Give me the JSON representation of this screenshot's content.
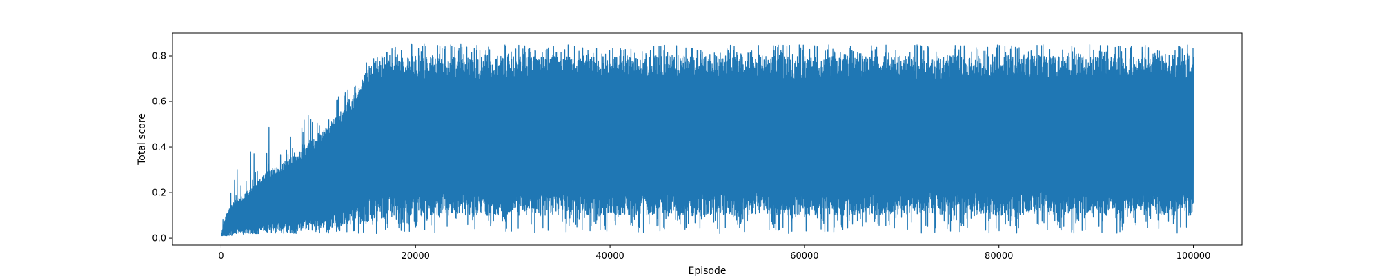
{
  "chart_data": {
    "type": "line",
    "title": "",
    "xlabel": "Episode",
    "ylabel": "Total score",
    "xlim": [
      -5000,
      105000
    ],
    "ylim": [
      -0.03,
      0.9
    ],
    "xticks": [
      0,
      20000,
      40000,
      60000,
      80000,
      100000
    ],
    "xtick_labels": [
      "0",
      "20000",
      "40000",
      "60000",
      "80000",
      "100000"
    ],
    "yticks": [
      0.0,
      0.2,
      0.4,
      0.6,
      0.8
    ],
    "ytick_labels": [
      "0.0",
      "0.2",
      "0.4",
      "0.6",
      "0.8"
    ],
    "grid": false,
    "series": [
      {
        "color": "#1f77b4",
        "envelope": {
          "x": [
            0,
            200,
            500,
            1000,
            2000,
            3000,
            4000,
            5000,
            6000,
            7000,
            8000,
            9000,
            10000,
            11000,
            12000,
            13000,
            14000,
            15000,
            16000,
            17000,
            18000,
            20000,
            30000,
            40000,
            50000,
            60000,
            70000,
            80000,
            90000,
            100000
          ],
          "upper": [
            0.02,
            0.12,
            0.22,
            0.35,
            0.3,
            0.38,
            0.42,
            0.55,
            0.4,
            0.45,
            0.48,
            0.58,
            0.55,
            0.63,
            0.62,
            0.68,
            0.7,
            0.78,
            0.8,
            0.83,
            0.85,
            0.86,
            0.85,
            0.85,
            0.85,
            0.85,
            0.85,
            0.85,
            0.85,
            0.85
          ],
          "lower": [
            0.01,
            0.01,
            0.01,
            0.01,
            0.01,
            0.02,
            0.02,
            0.02,
            0.02,
            0.02,
            0.02,
            0.03,
            0.02,
            0.02,
            0.03,
            0.02,
            0.02,
            0.03,
            0.02,
            0.03,
            0.02,
            0.02,
            0.02,
            0.02,
            0.02,
            0.02,
            0.02,
            0.02,
            0.02,
            0.02
          ],
          "band_high": [
            0.01,
            0.05,
            0.1,
            0.15,
            0.18,
            0.22,
            0.26,
            0.3,
            0.32,
            0.35,
            0.38,
            0.42,
            0.45,
            0.5,
            0.55,
            0.6,
            0.65,
            0.75,
            0.78,
            0.8,
            0.8,
            0.8,
            0.8,
            0.8,
            0.8,
            0.8,
            0.8,
            0.8,
            0.8,
            0.8
          ],
          "band_low": [
            0.01,
            0.01,
            0.01,
            0.015,
            0.02,
            0.02,
            0.02,
            0.025,
            0.03,
            0.03,
            0.03,
            0.04,
            0.04,
            0.05,
            0.05,
            0.06,
            0.06,
            0.07,
            0.08,
            0.09,
            0.09,
            0.1,
            0.1,
            0.1,
            0.1,
            0.1,
            0.1,
            0.1,
            0.1,
            0.1
          ]
        }
      }
    ]
  }
}
